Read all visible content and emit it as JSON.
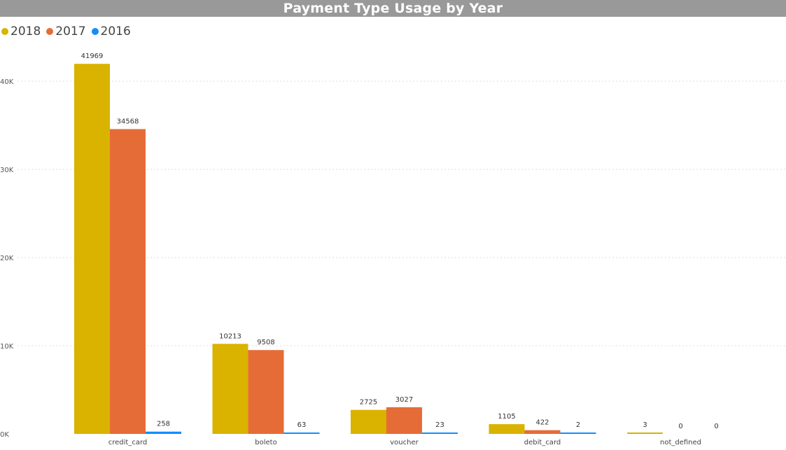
{
  "chart_data": {
    "type": "bar",
    "title": "Payment Type Usage by Year",
    "xlabel": "",
    "ylabel": "",
    "categories": [
      "credit_card",
      "boleto",
      "voucher",
      "debit_card",
      "not_defined"
    ],
    "series": [
      {
        "name": "2018",
        "color": "#D9B300",
        "values": [
          41969,
          10213,
          2725,
          1105,
          3
        ]
      },
      {
        "name": "2017",
        "color": "#E66C37",
        "values": [
          34568,
          9508,
          3027,
          422,
          0
        ]
      },
      {
        "name": "2016",
        "color": "#118DFF",
        "values": [
          258,
          63,
          23,
          2,
          0
        ]
      }
    ],
    "ylim": [
      0,
      40000
    ],
    "yticks": [
      {
        "value": 0,
        "label": "0K"
      },
      {
        "value": 10000,
        "label": "10K"
      },
      {
        "value": 20000,
        "label": "20K"
      },
      {
        "value": 30000,
        "label": "30K"
      },
      {
        "value": 40000,
        "label": "40K"
      }
    ],
    "grid": true,
    "legend_position": "top-left"
  }
}
